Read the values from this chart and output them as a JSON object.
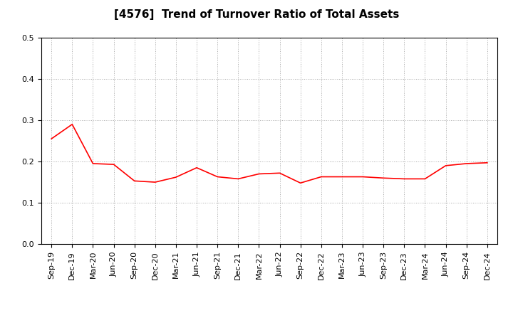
{
  "title": "[4576]  Trend of Turnover Ratio of Total Assets",
  "x_labels": [
    "Sep-19",
    "Dec-19",
    "Mar-20",
    "Jun-20",
    "Sep-20",
    "Dec-20",
    "Mar-21",
    "Jun-21",
    "Sep-21",
    "Dec-21",
    "Mar-22",
    "Jun-22",
    "Sep-22",
    "Dec-22",
    "Mar-23",
    "Jun-23",
    "Sep-23",
    "Dec-23",
    "Mar-24",
    "Jun-24",
    "Sep-24",
    "Dec-24"
  ],
  "y_values": [
    0.255,
    0.29,
    0.195,
    0.193,
    0.153,
    0.15,
    0.162,
    0.185,
    0.163,
    0.158,
    0.17,
    0.172,
    0.148,
    0.163,
    0.163,
    0.163,
    0.16,
    0.158,
    0.158,
    0.19,
    0.195,
    0.197
  ],
  "line_color": "#ff0000",
  "background_color": "#ffffff",
  "grid_color": "#aaaaaa",
  "ylim": [
    0.0,
    0.5
  ],
  "yticks": [
    0.0,
    0.1,
    0.2,
    0.3,
    0.4,
    0.5
  ],
  "title_fontsize": 11,
  "tick_fontsize": 8
}
